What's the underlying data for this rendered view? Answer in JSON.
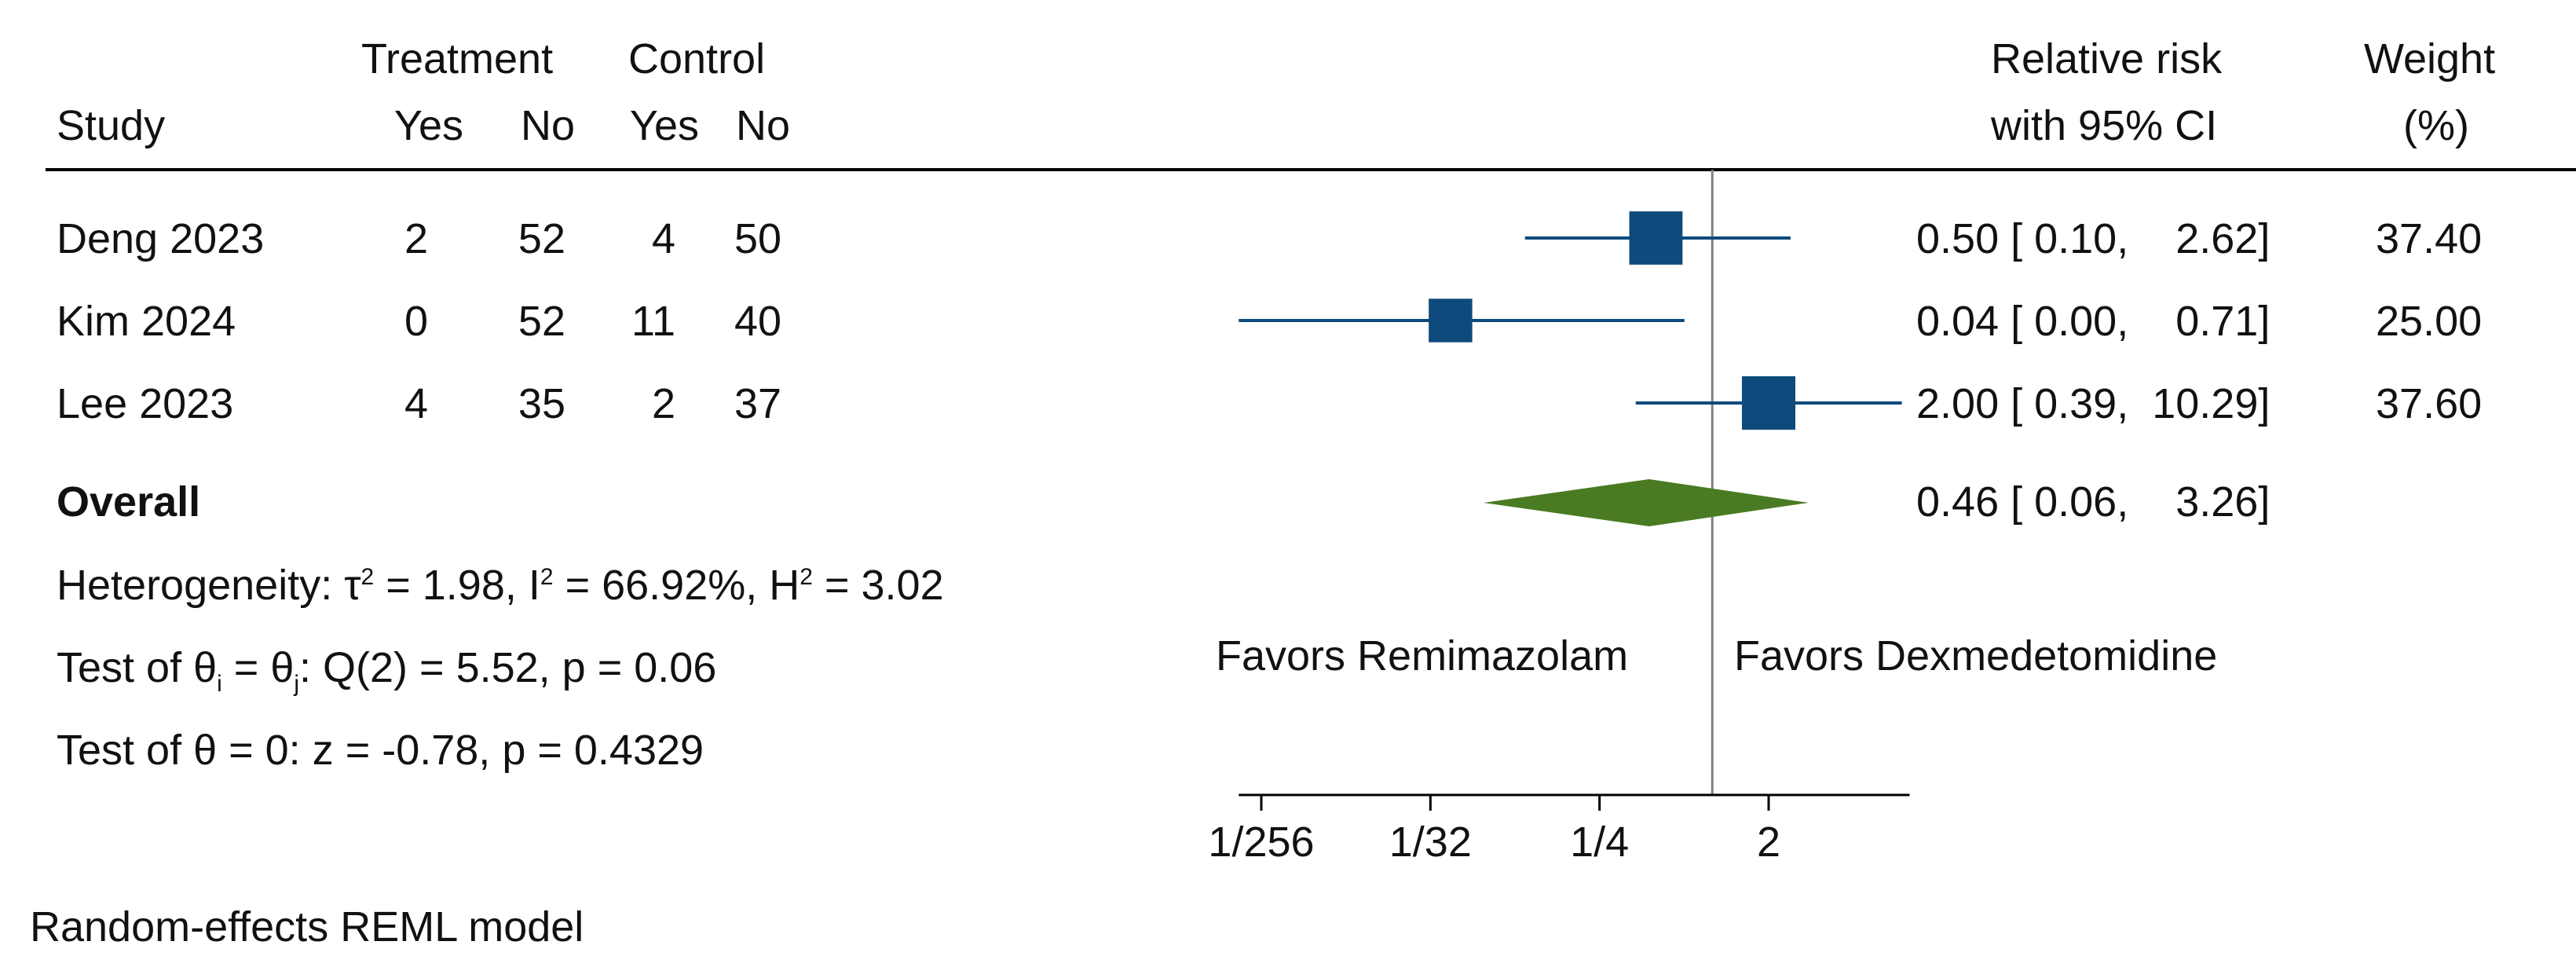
{
  "header": {
    "group_treatment": "Treatment",
    "group_control": "Control",
    "study": "Study",
    "yes": "Yes",
    "no": "No",
    "effect_line1": "Relative risk",
    "effect_line2": "with 95% CI",
    "weight_line1": "Weight",
    "weight_line2": "(%)"
  },
  "studies": [
    {
      "name": "Deng  2023",
      "t_yes": "2",
      "t_no": "52",
      "c_yes": "4",
      "c_no": "50",
      "ci_text": "0.50 [ 0.10,    2.62]",
      "weight": "37.40"
    },
    {
      "name": "Kim 2024",
      "t_yes": "0",
      "t_no": "52",
      "c_yes": "11",
      "c_no": "40",
      "ci_text": "0.04 [ 0.00,    0.71]",
      "weight": "25.00"
    },
    {
      "name": "Lee 2023",
      "t_yes": "4",
      "t_no": "35",
      "c_yes": "2",
      "c_no": "37",
      "ci_text": "2.00 [ 0.39,  10.29]",
      "weight": "37.60"
    }
  ],
  "overall": {
    "label": "Overall",
    "ci_text": "0.46 [ 0.06,    3.26]"
  },
  "stats": {
    "het_a": "Heterogeneity: τ",
    "het_b": " = 1.98, I",
    "het_c": " = 66.92%, H",
    "het_d": " = 3.02",
    "sq": "2",
    "test1_a": "Test of θ",
    "test1_i": "i",
    "test1_b": " = θ",
    "test1_j": "j",
    "test1_c": ": Q(2) = 5.52, p = 0.06",
    "test2": "Test of θ = 0: z = -0.78, p = 0.4329"
  },
  "favors_left": "Favors Remimazolam",
  "favors_right": "Favors Dexmedetomidine",
  "model_note": "Random-effects REML model",
  "colors": {
    "marker": "#0e4a7c",
    "diamond": "#4a7a22",
    "ref_line": "#808080",
    "axis": "#000000"
  },
  "chart_data": {
    "type": "forest",
    "title": "",
    "xlabel": "",
    "scale": "log2",
    "xlim_log2": [
      -8.4,
      3.5
    ],
    "xticks": [
      {
        "label": "1/256",
        "value": 0.00390625
      },
      {
        "label": "1/32",
        "value": 0.03125
      },
      {
        "label": "1/4",
        "value": 0.25
      },
      {
        "label": "2",
        "value": 2
      }
    ],
    "null_value": 1,
    "series": [
      {
        "name": "Deng  2023",
        "rr": 0.5,
        "lower": 0.1,
        "upper": 2.62,
        "weight": 37.4
      },
      {
        "name": "Kim 2024",
        "rr": 0.04,
        "lower": 0.0,
        "upper": 0.71,
        "weight": 25.0
      },
      {
        "name": "Lee 2023",
        "rr": 2.0,
        "lower": 0.39,
        "upper": 10.29,
        "weight": 37.6
      }
    ],
    "overall": {
      "rr": 0.46,
      "lower": 0.06,
      "upper": 3.26
    }
  }
}
